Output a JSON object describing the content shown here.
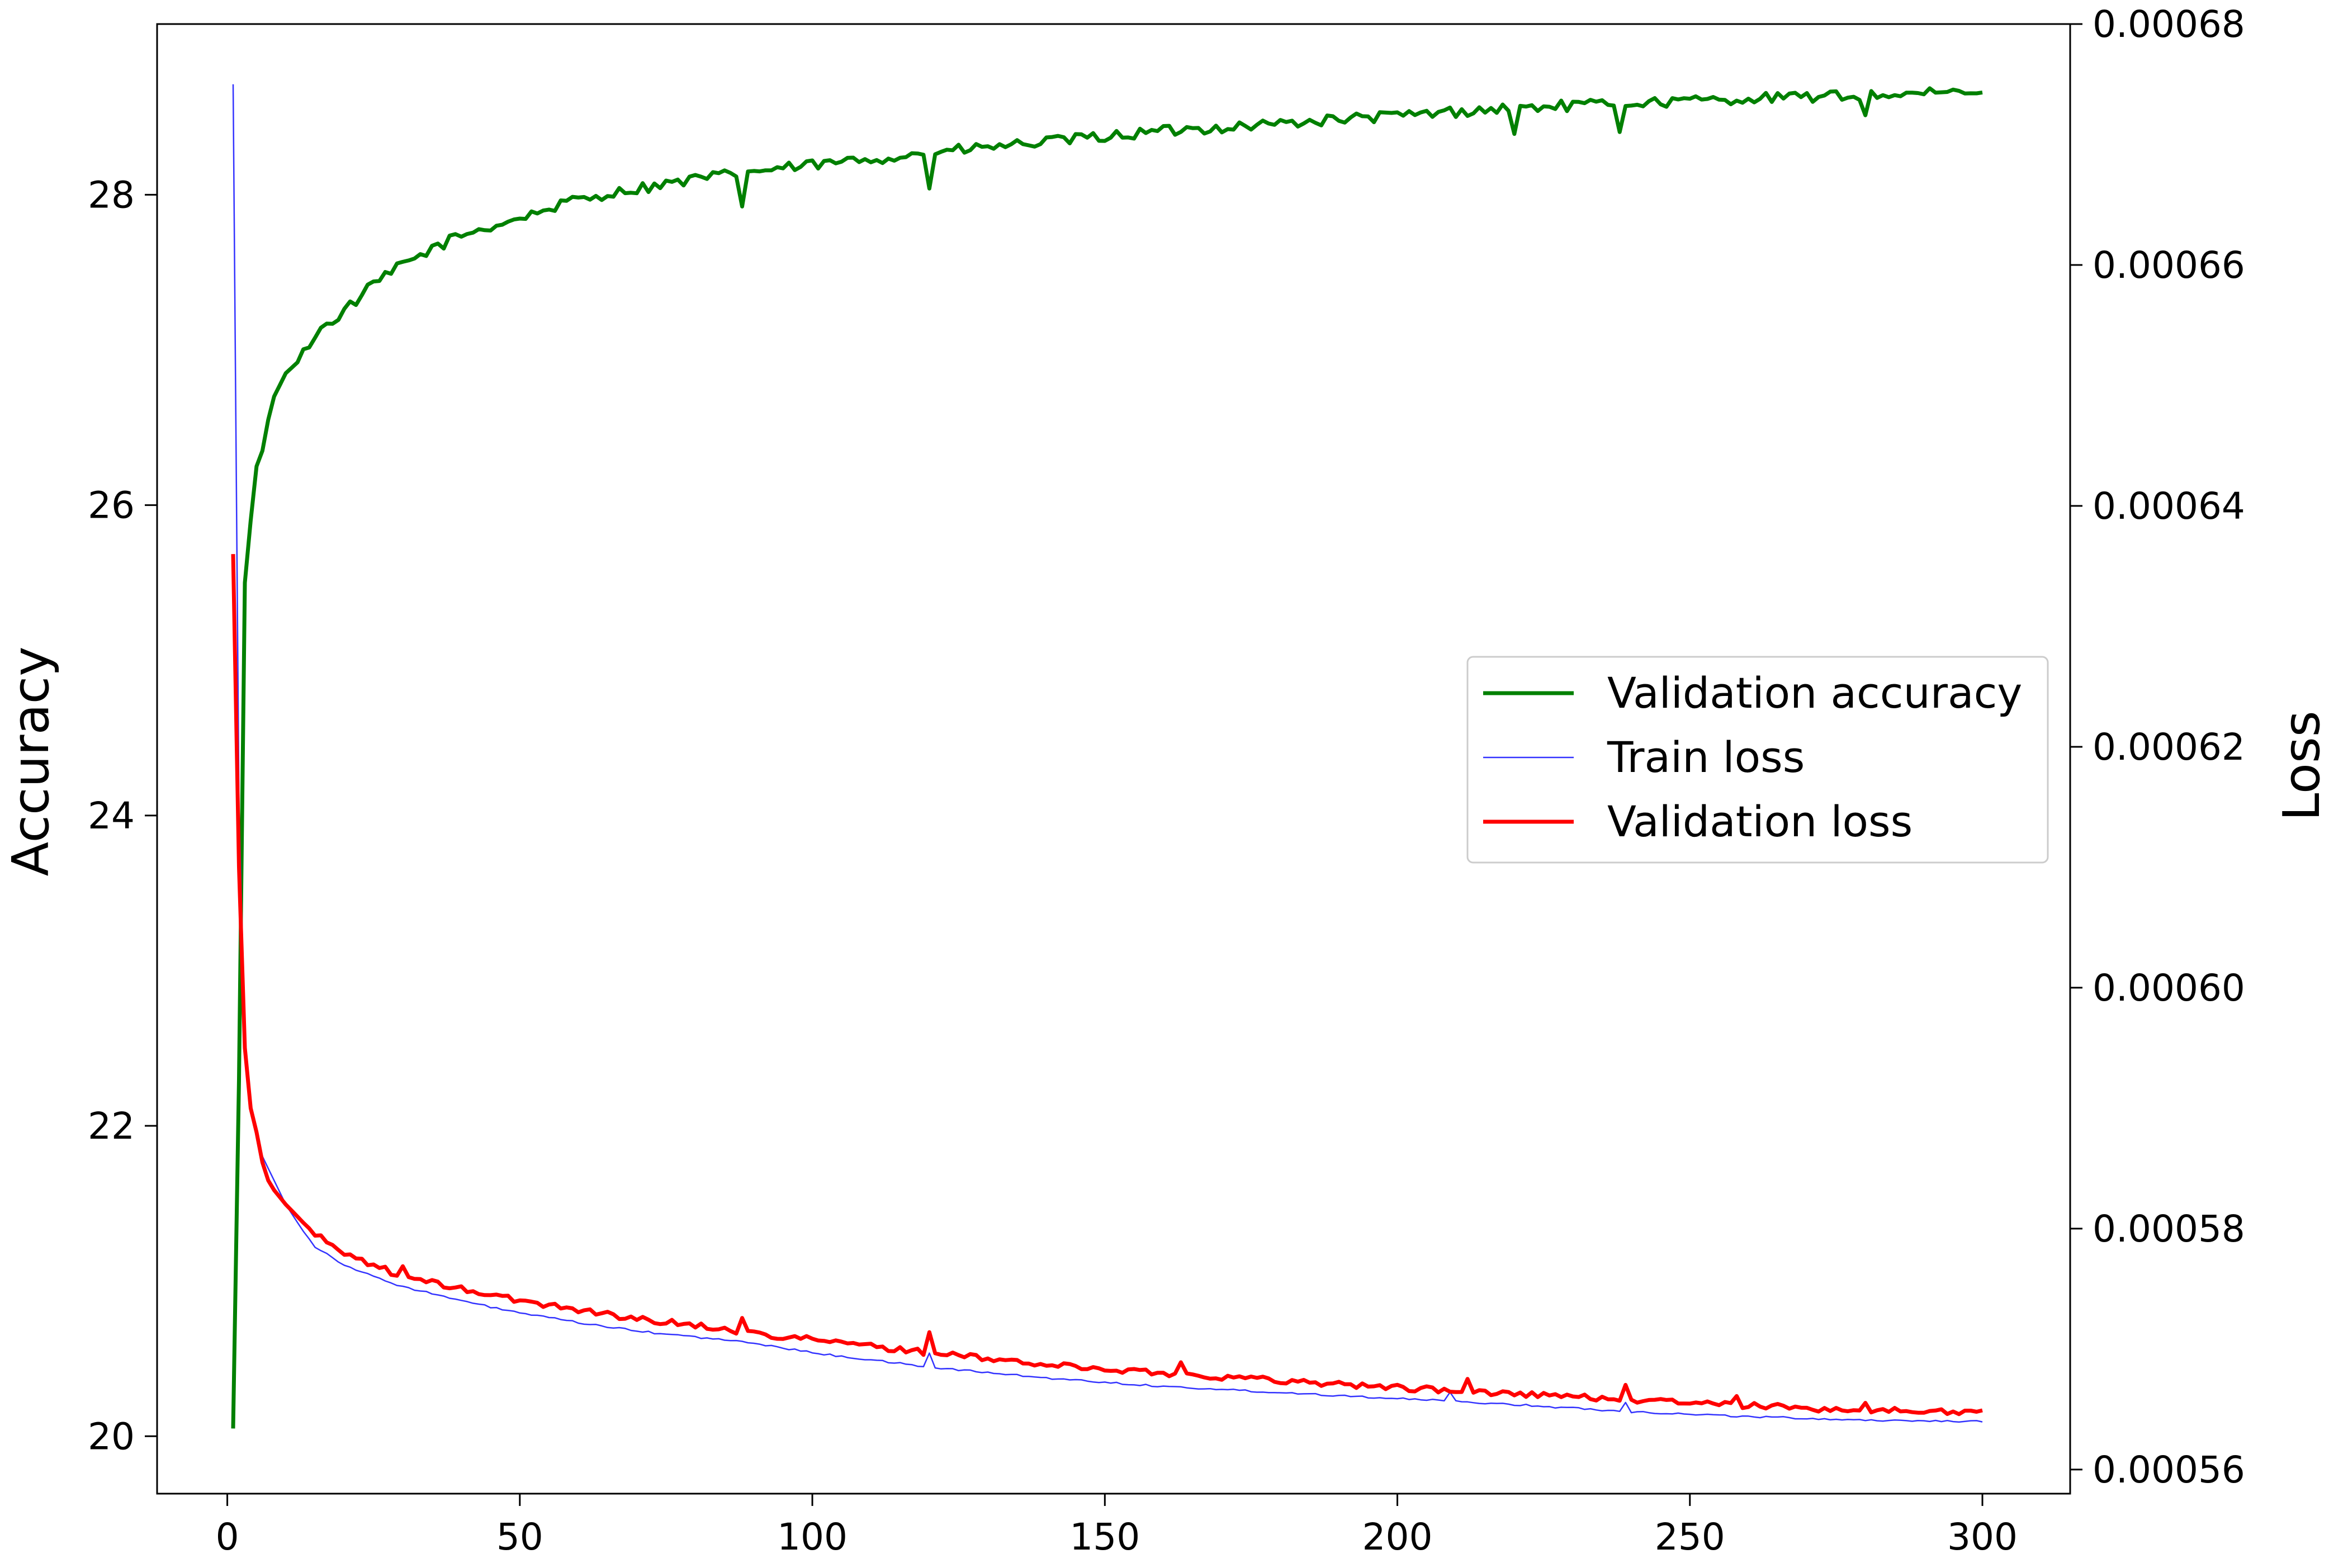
{
  "chart_data": {
    "type": "line",
    "title": "",
    "xlabel": "",
    "ylabel_left": "Accuracy",
    "ylabel_right": "Loss",
    "xlim": [
      -12,
      315
    ],
    "ylim_left": [
      19.63,
      29.1
    ],
    "ylim_right": [
      0.000558,
      0.00068
    ],
    "x_ticks": [
      0,
      50,
      100,
      150,
      200,
      250,
      300
    ],
    "x_tick_labels": [
      "0",
      "50",
      "100",
      "150",
      "200",
      "250",
      "300"
    ],
    "y_left_ticks": [
      20,
      22,
      24,
      26,
      28
    ],
    "y_left_tick_labels": [
      "20",
      "22",
      "24",
      "26",
      "28"
    ],
    "y_right_ticks": [
      0.00056,
      0.00058,
      0.0006,
      0.00062,
      0.00064,
      0.00066,
      0.00068
    ],
    "y_right_tick_labels": [
      "0.00056",
      "0.00058",
      "0.00060",
      "0.00062",
      "0.00064",
      "0.00066",
      "0.00068"
    ],
    "grid": false,
    "legend_position": "center-right",
    "x_range": [
      1,
      300
    ],
    "series": [
      {
        "name": "Validation accuracy",
        "axis": "left",
        "color": "#008000",
        "anchors": [
          [
            1,
            20.05
          ],
          [
            2,
            22.3
          ],
          [
            3,
            25.5
          ],
          [
            4,
            25.9
          ],
          [
            5,
            26.25
          ],
          [
            6,
            26.35
          ],
          [
            7,
            26.55
          ],
          [
            8,
            26.7
          ],
          [
            10,
            26.85
          ],
          [
            12,
            26.92
          ],
          [
            15,
            27.1
          ],
          [
            20,
            27.25
          ],
          [
            25,
            27.42
          ],
          [
            30,
            27.55
          ],
          [
            35,
            27.65
          ],
          [
            40,
            27.74
          ],
          [
            50,
            27.85
          ],
          [
            60,
            27.97
          ],
          [
            70,
            28.04
          ],
          [
            80,
            28.1
          ],
          [
            90,
            28.15
          ],
          [
            100,
            28.19
          ],
          [
            120,
            28.27
          ],
          [
            140,
            28.34
          ],
          [
            160,
            28.41
          ],
          [
            180,
            28.46
          ],
          [
            200,
            28.51
          ],
          [
            220,
            28.56
          ],
          [
            240,
            28.59
          ],
          [
            260,
            28.62
          ],
          [
            280,
            28.64
          ],
          [
            300,
            28.66
          ]
        ],
        "spikes": [
          [
            88,
            -0.2
          ],
          [
            120,
            -0.22
          ],
          [
            220,
            -0.18
          ],
          [
            238,
            -0.16
          ],
          [
            280,
            -0.12
          ]
        ],
        "noise": 0.035
      },
      {
        "name": "Train loss",
        "axis": "right",
        "color": "#3333ff",
        "anchors": [
          [
            1,
            0.000675
          ],
          [
            2,
            0.000615
          ],
          [
            3,
            0.000596
          ],
          [
            4,
            0.00059
          ],
          [
            5,
            0.000588
          ],
          [
            6,
            0.000586
          ],
          [
            7,
            0.000585
          ],
          [
            8,
            0.000584
          ],
          [
            10,
            0.000582
          ],
          [
            12,
            0.0005805
          ],
          [
            15,
            0.0005785
          ],
          [
            20,
            0.000577
          ],
          [
            25,
            0.000576
          ],
          [
            30,
            0.0005752
          ],
          [
            40,
            0.000574
          ],
          [
            50,
            0.000573
          ],
          [
            60,
            0.0005722
          ],
          [
            70,
            0.0005715
          ],
          [
            80,
            0.000571
          ],
          [
            90,
            0.0005705
          ],
          [
            100,
            0.0005697
          ],
          [
            120,
            0.0005685
          ],
          [
            140,
            0.0005676
          ],
          [
            160,
            0.0005669
          ],
          [
            180,
            0.0005664
          ],
          [
            200,
            0.0005659
          ],
          [
            220,
            0.0005654
          ],
          [
            240,
            0.0005648
          ],
          [
            260,
            0.0005644
          ],
          [
            280,
            0.0005641
          ],
          [
            300,
            0.000564
          ]
        ],
        "spikes": [
          [
            120,
            1.2e-06
          ],
          [
            209,
            7e-07
          ],
          [
            239,
            8e-07
          ]
        ],
        "noise": 8e-08
      },
      {
        "name": "Validation loss",
        "axis": "right",
        "color": "#ff0000",
        "anchors": [
          [
            1,
            0.000636
          ],
          [
            2,
            0.00061
          ],
          [
            3,
            0.000595
          ],
          [
            4,
            0.00059
          ],
          [
            5,
            0.000588
          ],
          [
            6,
            0.0005855
          ],
          [
            7,
            0.000584
          ],
          [
            8,
            0.0005832
          ],
          [
            10,
            0.000582
          ],
          [
            12,
            0.000581
          ],
          [
            15,
            0.0005795
          ],
          [
            20,
            0.000578
          ],
          [
            25,
            0.000577
          ],
          [
            30,
            0.000576
          ],
          [
            40,
            0.000575
          ],
          [
            50,
            0.000574
          ],
          [
            60,
            0.0005733
          ],
          [
            70,
            0.0005725
          ],
          [
            80,
            0.000572
          ],
          [
            90,
            0.0005713
          ],
          [
            100,
            0.0005708
          ],
          [
            120,
            0.0005697
          ],
          [
            140,
            0.0005687
          ],
          [
            160,
            0.000568
          ],
          [
            180,
            0.0005674
          ],
          [
            200,
            0.0005668
          ],
          [
            220,
            0.0005663
          ],
          [
            240,
            0.0005658
          ],
          [
            260,
            0.0005653
          ],
          [
            280,
            0.0005649
          ],
          [
            300,
            0.0005648
          ]
        ],
        "spikes": [
          [
            30,
            7e-07
          ],
          [
            88,
            1.1e-06
          ],
          [
            120,
            1.8e-06
          ],
          [
            163,
            9e-07
          ],
          [
            212,
            8e-07
          ],
          [
            239,
            1.2e-06
          ],
          [
            258,
            8e-07
          ],
          [
            280,
            7e-07
          ]
        ],
        "noise": 2.5e-07
      }
    ]
  }
}
